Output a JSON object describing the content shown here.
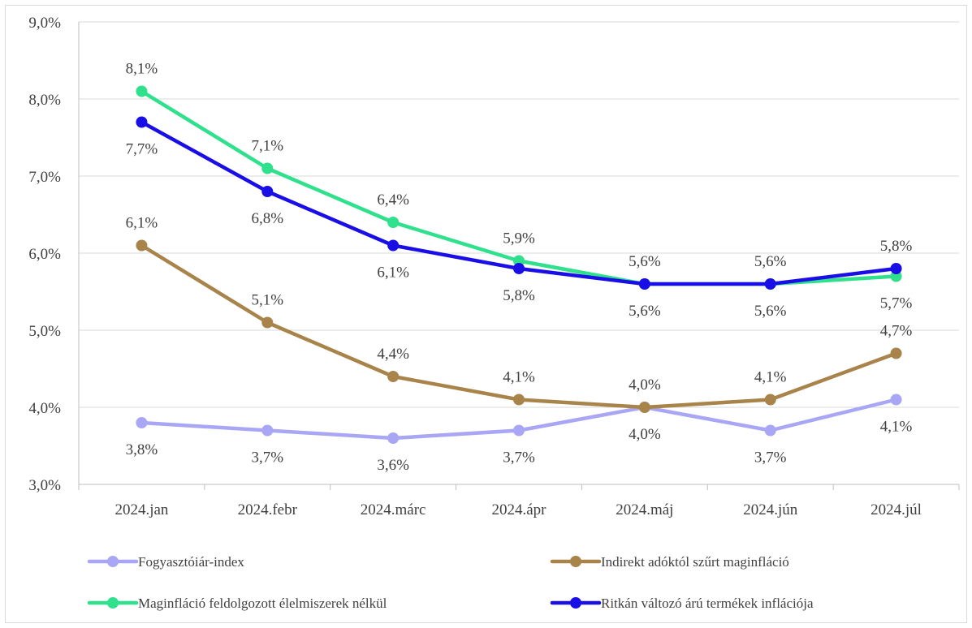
{
  "chart_data": {
    "type": "line",
    "categories": [
      "2024.jan",
      "2024.febr",
      "2024.márc",
      "2024.ápr",
      "2024.máj",
      "2024.jún",
      "2024.júl"
    ],
    "ylim": [
      3.0,
      9.0
    ],
    "yticks": [
      "3,0%",
      "4,0%",
      "5,0%",
      "6,0%",
      "7,0%",
      "8,0%",
      "9,0%"
    ],
    "grid": true,
    "legend_position": "bottom",
    "series": [
      {
        "name": "Fogyasztóiár-index",
        "color": "#a9a6f5",
        "values": [
          3.8,
          3.7,
          3.6,
          3.7,
          4.0,
          3.7,
          4.1
        ],
        "labels": [
          "3,8%",
          "3,7%",
          "3,6%",
          "3,7%",
          "4,0%",
          "3,7%",
          "4,1%"
        ],
        "label_side": [
          "below",
          "below",
          "below",
          "below",
          "below",
          "below",
          "below"
        ]
      },
      {
        "name": "Indirekt adóktól szűrt maginfláció",
        "color": "#a8844a",
        "values": [
          6.1,
          5.1,
          4.4,
          4.1,
          4.0,
          4.1,
          4.7
        ],
        "labels": [
          "6,1%",
          "5,1%",
          "4,4%",
          "4,1%",
          "4,0%",
          "4,1%",
          "4,7%"
        ],
        "label_side": [
          "above",
          "above",
          "above",
          "above",
          "above",
          "above",
          "above"
        ]
      },
      {
        "name": "Maginfláció feldolgozott élelmiszerek nélkül",
        "color": "#2fe08c",
        "values": [
          8.1,
          7.1,
          6.4,
          5.9,
          5.6,
          5.6,
          5.7
        ],
        "labels": [
          "8,1%",
          "7,1%",
          "6,4%",
          "5,9%",
          "5,6%",
          "5,6%",
          "5,7%"
        ],
        "label_side": [
          "above",
          "above",
          "above",
          "above",
          "below",
          "below",
          "below"
        ]
      },
      {
        "name": "Ritkán változó árú termékek inflációja",
        "color": "#1a0ee6",
        "values": [
          7.7,
          6.8,
          6.1,
          5.8,
          5.6,
          5.6,
          5.8
        ],
        "labels": [
          "7,7%",
          "6,8%",
          "6,1%",
          "5,8%",
          "5,6%",
          "5,6%",
          "5,8%"
        ],
        "label_side": [
          "below",
          "below",
          "below",
          "below",
          "above",
          "above",
          "above"
        ]
      }
    ]
  }
}
